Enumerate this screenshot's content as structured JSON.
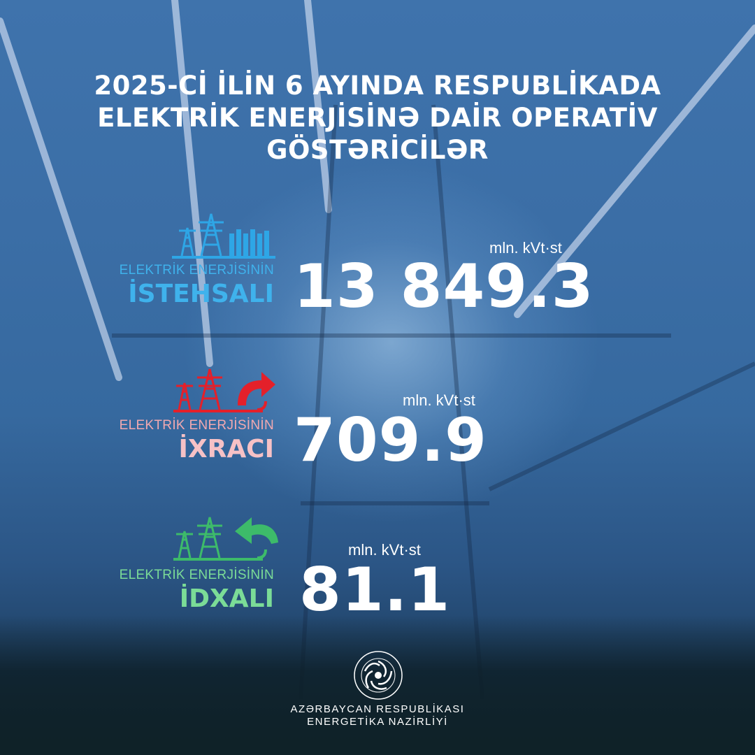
{
  "title": {
    "line1": "2025-Cİ İLİN 6 AYINDA RESPUBLİKADA",
    "line2": "ELEKTRİK ENERJİSİNƏ DAİR OPERATİV",
    "line3": "GÖSTƏRİCİLƏR"
  },
  "indicators": [
    {
      "label_small": "ELEKTRİK ENERJİSİNİN",
      "label_big": "İSTEHSALI",
      "unit": "mln. kVt·st",
      "value": "13 849.3",
      "color": "#2ea6e6",
      "icon": "power-plant-icon"
    },
    {
      "label_small": "ELEKTRİK ENERJİSİNİN",
      "label_big": "İXRACI",
      "unit": "mln. kVt·st",
      "value": "709.9",
      "color": "#e4202a",
      "icon": "export-arrow-icon"
    },
    {
      "label_small": "ELEKTRİK ENERJİSİNİN",
      "label_big": "İDXALI",
      "unit": "mln. kVt·st",
      "value": "81.1",
      "color": "#3dbb6a",
      "icon": "import-arrow-icon"
    }
  ],
  "label_colors": {
    "istehsal": "#3fb2ec",
    "ixrac_small": "#f2a9b0",
    "ixrac_big": "#f6c1c6",
    "idxal": "#7bdc97"
  },
  "footer": {
    "line1": "AZƏRBAYCAN RESPUBLİKASI",
    "line2": "ENERGETİKA NAZİRLİYİ",
    "logo_icon": "ministry-emblem-icon"
  }
}
